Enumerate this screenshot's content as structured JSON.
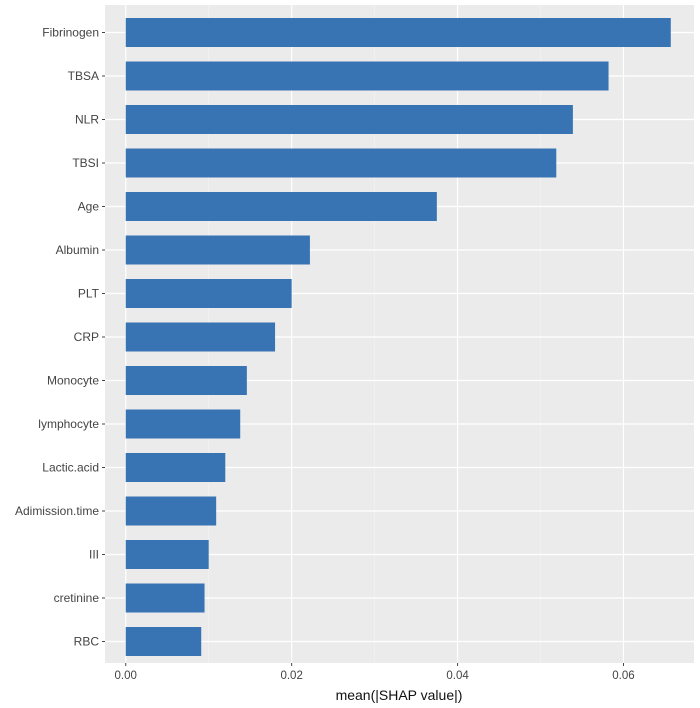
{
  "chart_data": {
    "type": "bar",
    "orientation": "horizontal",
    "categories": [
      "Fibrinogen",
      "TBSA",
      "NLR",
      "TBSI",
      "Age",
      "Albumin",
      "PLT",
      "CRP",
      "Monocyte",
      "lymphocyte",
      "Lactic.acid",
      "Adimission.time",
      "III",
      "cretinine",
      "RBC"
    ],
    "values": [
      0.0657,
      0.0582,
      0.0539,
      0.0519,
      0.0375,
      0.0222,
      0.02,
      0.018,
      0.0146,
      0.0138,
      0.012,
      0.0109,
      0.01,
      0.0095,
      0.0091
    ],
    "xlabel": "mean(|SHAP value|)",
    "ylabel": "",
    "xlim": [
      -0.0025,
      0.0685
    ],
    "x_ticks": [
      0.0,
      0.02,
      0.04,
      0.06
    ],
    "x_tick_labels": [
      "0.00",
      "0.02",
      "0.04",
      "0.06"
    ],
    "grid": true,
    "colors": {
      "bar": "#3873B3",
      "panel_background": "#EBEBEB",
      "grid_major": "#FFFFFF",
      "grid_minor": "#F4F4F4"
    }
  }
}
